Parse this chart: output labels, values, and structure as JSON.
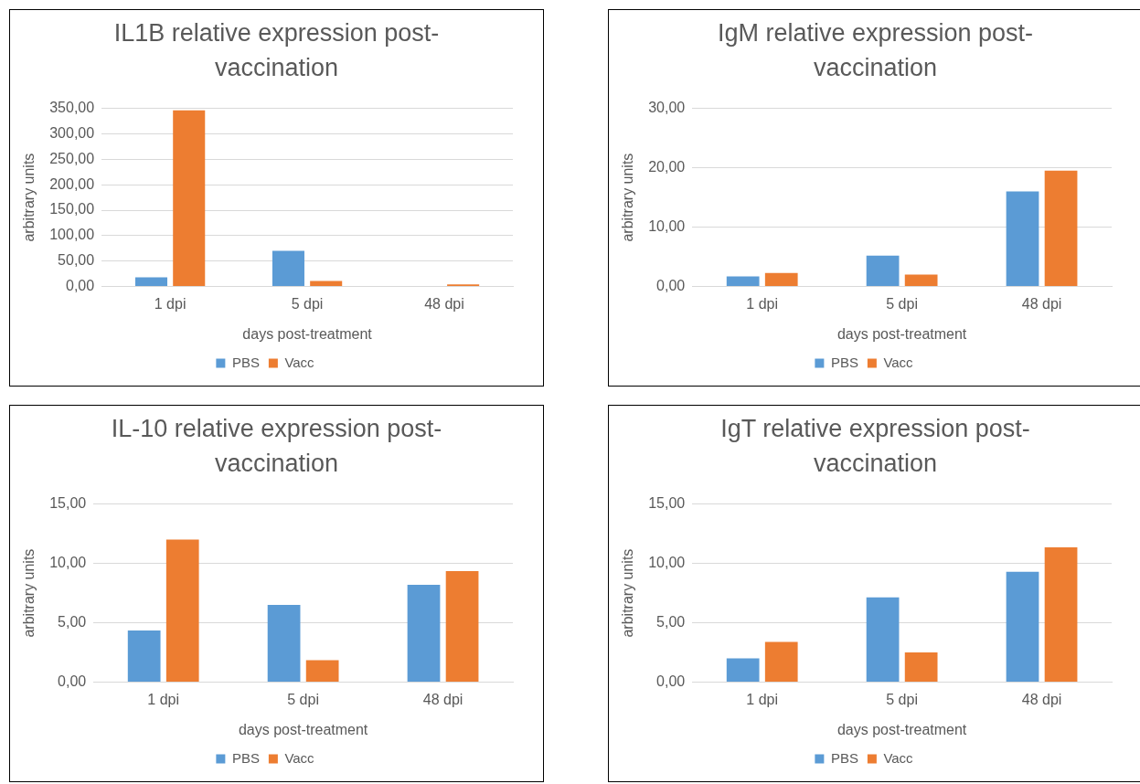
{
  "chart_data": [
    {
      "type": "bar",
      "title": "IL1B relative expression post-vaccination",
      "xlabel": "days post-treatment",
      "ylabel": "arbitrary units",
      "categories": [
        "1 dpi",
        "5 dpi",
        "48 dpi"
      ],
      "series": [
        {
          "name": "PBS",
          "color": "#5b9bd5",
          "values": [
            18,
            70,
            null
          ]
        },
        {
          "name": "Vacc",
          "color": "#ed7d31",
          "values": [
            346,
            11,
            4
          ]
        }
      ],
      "ylim": [
        0,
        350
      ],
      "yticks": [
        {
          "value": 0,
          "label": "0,00"
        },
        {
          "value": 50,
          "label": "50,00"
        },
        {
          "value": 100,
          "label": "100,00"
        },
        {
          "value": 150,
          "label": "150,00"
        },
        {
          "value": 200,
          "label": "200,00"
        },
        {
          "value": 250,
          "label": "250,00"
        },
        {
          "value": 300,
          "label": "300,00"
        },
        {
          "value": 350,
          "label": "350,00"
        }
      ],
      "grid": "y",
      "legend": "bottom"
    },
    {
      "type": "bar",
      "title": "IgM relative expression post-vaccination",
      "xlabel": "days post-treatment",
      "ylabel": "arbitrary units",
      "categories": [
        "1 dpi",
        "5 dpi",
        "48 dpi"
      ],
      "series": [
        {
          "name": "PBS",
          "color": "#5b9bd5",
          "values": [
            1.7,
            5.2,
            16
          ]
        },
        {
          "name": "Vacc",
          "color": "#ed7d31",
          "values": [
            2.3,
            2,
            19.5
          ]
        }
      ],
      "ylim": [
        0,
        30
      ],
      "yticks": [
        {
          "value": 0,
          "label": "0,00"
        },
        {
          "value": 10,
          "label": "10,00"
        },
        {
          "value": 20,
          "label": "20,00"
        },
        {
          "value": 30,
          "label": "30,00"
        }
      ],
      "grid": "y",
      "legend": "bottom"
    },
    {
      "type": "bar",
      "title": "IL-10 relative expression post-vaccination",
      "xlabel": "days post-treatment",
      "ylabel": "arbitrary units",
      "categories": [
        "1 dpi",
        "5 dpi",
        "48 dpi"
      ],
      "series": [
        {
          "name": "PBS",
          "color": "#5b9bd5",
          "values": [
            4.35,
            6.5,
            8.2
          ]
        },
        {
          "name": "Vacc",
          "color": "#ed7d31",
          "values": [
            12,
            1.85,
            9.35
          ]
        }
      ],
      "ylim": [
        0,
        15
      ],
      "yticks": [
        {
          "value": 0,
          "label": "0,00"
        },
        {
          "value": 5,
          "label": "5,00"
        },
        {
          "value": 10,
          "label": "10,00"
        },
        {
          "value": 15,
          "label": "15,00"
        }
      ],
      "grid": "y",
      "legend": "bottom"
    },
    {
      "type": "bar",
      "title": "IgT relative expression post-vaccination",
      "xlabel": "days post-treatment",
      "ylabel": "arbitrary units",
      "categories": [
        "1 dpi",
        "5 dpi",
        "48 dpi"
      ],
      "series": [
        {
          "name": "PBS",
          "color": "#5b9bd5",
          "values": [
            2,
            7.15,
            9.3
          ]
        },
        {
          "name": "Vacc",
          "color": "#ed7d31",
          "values": [
            3.4,
            2.5,
            11.35
          ]
        }
      ],
      "ylim": [
        0,
        15
      ],
      "yticks": [
        {
          "value": 0,
          "label": "0,00"
        },
        {
          "value": 5,
          "label": "5,00"
        },
        {
          "value": 10,
          "label": "10,00"
        },
        {
          "value": 15,
          "label": "15,00"
        }
      ],
      "grid": "y",
      "legend": "bottom"
    }
  ]
}
